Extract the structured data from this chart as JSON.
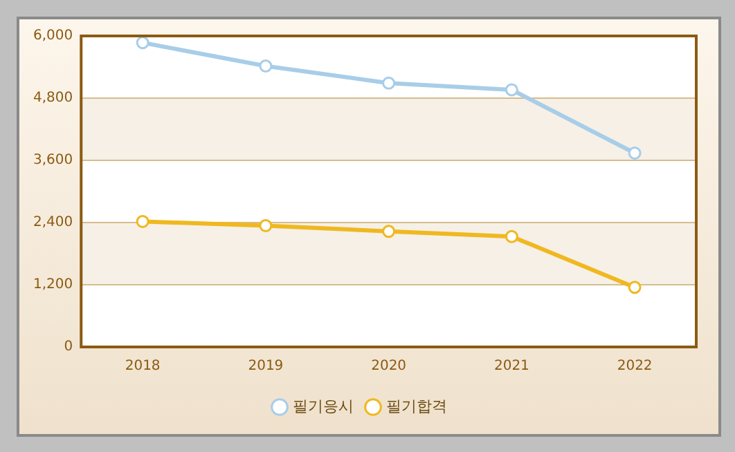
{
  "chart_data": {
    "type": "line",
    "categories": [
      "2018",
      "2019",
      "2020",
      "2021",
      "2022"
    ],
    "series": [
      {
        "name": "필기응시",
        "color": "#a8cde8",
        "values": [
          5870,
          5420,
          5090,
          4960,
          3740
        ]
      },
      {
        "name": "필기합격",
        "color": "#f0b820",
        "values": [
          2420,
          2340,
          2230,
          2130,
          1150
        ]
      }
    ],
    "ylim": [
      0,
      6000
    ],
    "yticks": [
      {
        "value": 0,
        "label": "0"
      },
      {
        "value": 1200,
        "label": "1,200"
      },
      {
        "value": 2400,
        "label": "2,400"
      },
      {
        "value": 3600,
        "label": "3,600"
      },
      {
        "value": 4800,
        "label": "4,800"
      },
      {
        "value": 6000,
        "label": "6,000"
      }
    ],
    "grid": "y",
    "legend": "bottom",
    "marker": "circle",
    "line_style": "solid"
  }
}
